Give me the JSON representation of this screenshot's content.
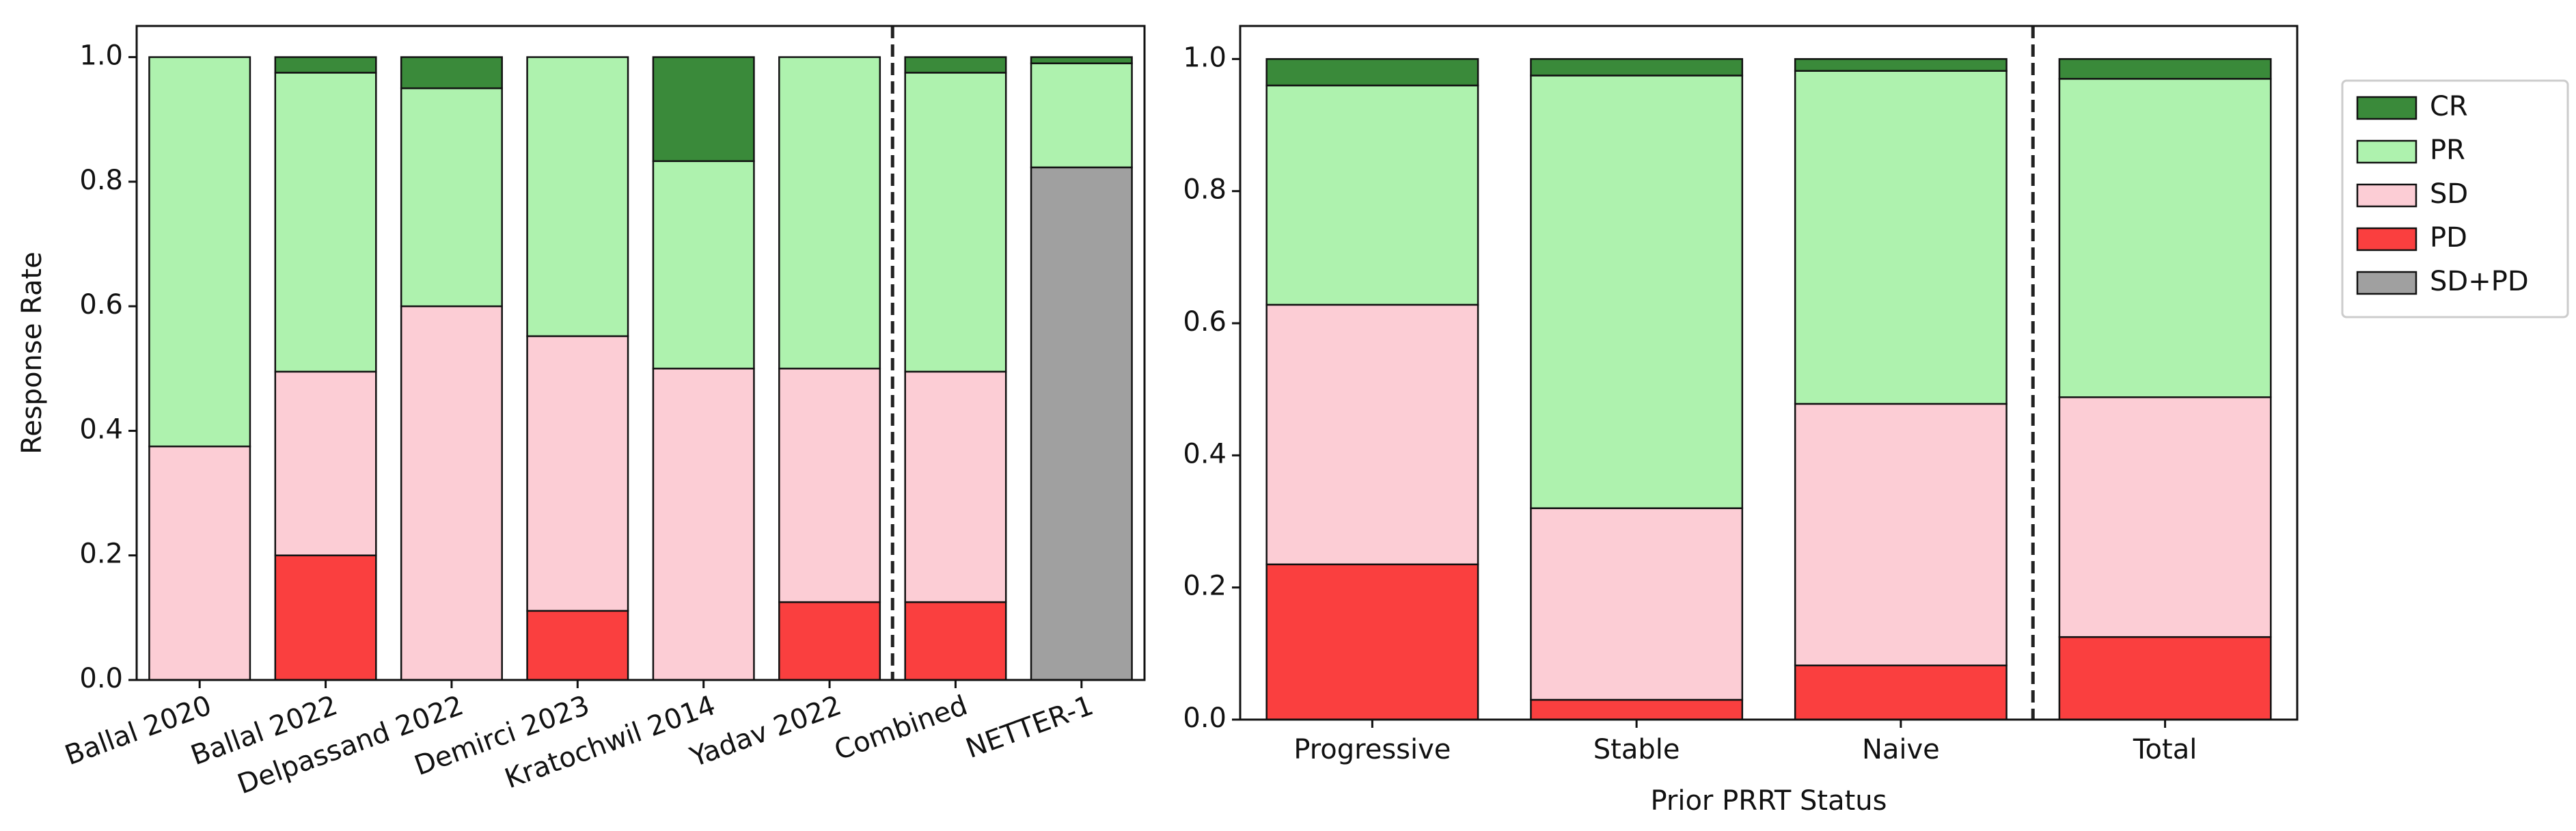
{
  "chart_data": [
    {
      "type": "bar",
      "stacked": true,
      "categories": [
        "Ballal 2020",
        "Ballal 2022",
        "Delpassand 2022",
        "Demirci 2023",
        "Kratochwil 2014",
        "Yadav 2022",
        "Combined",
        "NETTER-1"
      ],
      "series": [
        {
          "name": "SD+PD",
          "values": [
            0,
            0,
            0,
            0,
            0,
            0,
            0,
            0.823
          ]
        },
        {
          "name": "PD",
          "values": [
            0,
            0.2,
            0,
            0.111,
            0,
            0.125,
            0.125,
            0
          ]
        },
        {
          "name": "SD",
          "values": [
            0.375,
            0.295,
            0.6,
            0.441,
            0.5,
            0.375,
            0.37,
            0
          ]
        },
        {
          "name": "PR",
          "values": [
            0.625,
            0.48,
            0.35,
            0.448,
            0.333,
            0.5,
            0.48,
            0.167
          ]
        },
        {
          "name": "CR",
          "values": [
            0,
            0.025,
            0.05,
            0,
            0.167,
            0,
            0.025,
            0.01
          ]
        }
      ],
      "xlabel": "",
      "ylabel": "Response Rate",
      "ylim": [
        0,
        1.05
      ],
      "yticks": [
        "0.0",
        "0.2",
        "0.4",
        "0.6",
        "0.8",
        "1.0"
      ],
      "xtick_rotation": -20,
      "divider_after_index": 5,
      "grid": false
    },
    {
      "type": "bar",
      "stacked": true,
      "categories": [
        "Progressive",
        "Stable",
        "Naive",
        "Total"
      ],
      "series": [
        {
          "name": "PD",
          "values": [
            0.235,
            0.03,
            0.082,
            0.125
          ]
        },
        {
          "name": "SD",
          "values": [
            0.393,
            0.29,
            0.396,
            0.363
          ]
        },
        {
          "name": "PR",
          "values": [
            0.332,
            0.655,
            0.504,
            0.482
          ]
        },
        {
          "name": "CR",
          "values": [
            0.04,
            0.025,
            0.018,
            0.03
          ]
        }
      ],
      "xlabel": "Prior PRRT Status",
      "ylabel": "",
      "ylim": [
        0,
        1.05
      ],
      "yticks": [
        "0.0",
        "0.2",
        "0.4",
        "0.6",
        "0.8",
        "1.0"
      ],
      "divider_after_index": 2,
      "grid": false
    }
  ],
  "legend": {
    "placement": "right",
    "items": [
      {
        "label": "CR",
        "color": "#3a8a3a"
      },
      {
        "label": "PR",
        "color": "#aef2ae"
      },
      {
        "label": "SD",
        "color": "#fccdd5"
      },
      {
        "label": "PD",
        "color": "#fa3f3f"
      },
      {
        "label": "SD+PD",
        "color": "#a0a0a0"
      }
    ]
  }
}
